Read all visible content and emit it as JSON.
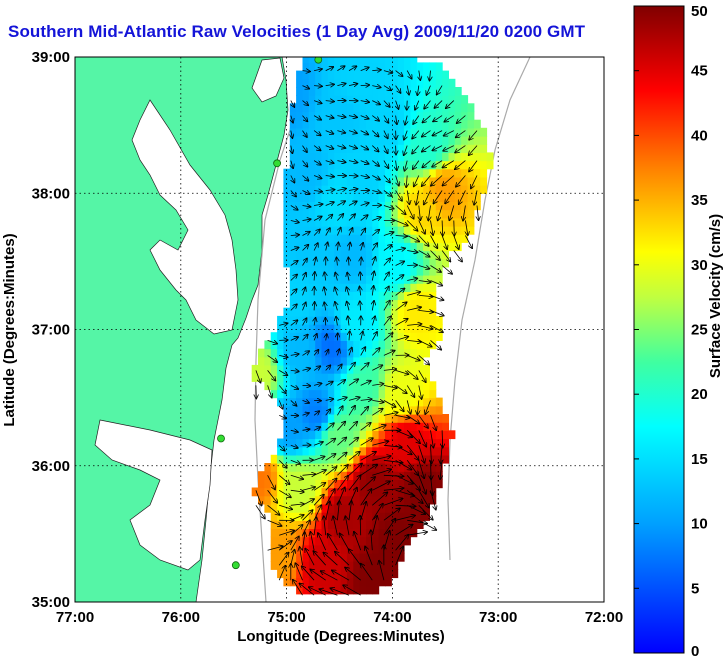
{
  "chart_data": {
    "type": "heatmap",
    "title": "Southern Mid-Atlantic Raw Velocities (1 Day Avg) 2009/11/20 0200 GMT",
    "xlabel": "Longitude (Degrees:Minutes)",
    "ylabel": "Latitude (Degrees:Minutes)",
    "xlim": [
      -77,
      -72
    ],
    "ylim": [
      35,
      39
    ],
    "x_ticks": [
      {
        "value": -77,
        "label": "77:00"
      },
      {
        "value": -76,
        "label": "76:00"
      },
      {
        "value": -75,
        "label": "75:00"
      },
      {
        "value": -74,
        "label": "74:00"
      },
      {
        "value": -73,
        "label": "73:00"
      },
      {
        "value": -72,
        "label": "72:00"
      }
    ],
    "y_ticks": [
      {
        "value": 35,
        "label": "35:00"
      },
      {
        "value": 36,
        "label": "36:00"
      },
      {
        "value": 37,
        "label": "37:00"
      },
      {
        "value": 38,
        "label": "38:00"
      },
      {
        "value": 39,
        "label": "39:00"
      }
    ],
    "grid": true,
    "colorbar": {
      "label": "Surface Velocity (cm/s)",
      "range": [
        0,
        50
      ],
      "ticks": [
        {
          "value": 0,
          "label": "0"
        },
        {
          "value": 5,
          "label": "5"
        },
        {
          "value": 10,
          "label": "10"
        },
        {
          "value": 15,
          "label": "15"
        },
        {
          "value": 20,
          "label": "20"
        },
        {
          "value": 25,
          "label": "25"
        },
        {
          "value": 30,
          "label": "30"
        },
        {
          "value": 35,
          "label": "35"
        },
        {
          "value": 40,
          "label": "40"
        },
        {
          "value": 45,
          "label": "45"
        },
        {
          "value": 50,
          "label": "50"
        }
      ],
      "colormap": "jet"
    },
    "land_color": "#55f5a6",
    "arrow_color": "#000000",
    "stations": [
      {
        "lon": -74.7,
        "lat": 38.98
      },
      {
        "lon": -75.09,
        "lat": 38.22
      },
      {
        "lon": -75.62,
        "lat": 36.2
      },
      {
        "lon": -75.48,
        "lat": 35.27
      }
    ],
    "velocity_field": [
      {
        "lon": -75.03,
        "lat": 38.7,
        "speed": 10
      },
      {
        "lon": -74.5,
        "lat": 38.55,
        "speed": 13
      },
      {
        "lon": -74.1,
        "lat": 38.45,
        "speed": 14
      },
      {
        "lon": -73.7,
        "lat": 38.3,
        "speed": 20
      },
      {
        "lon": -73.55,
        "lat": 38.0,
        "speed": 36
      },
      {
        "lon": -73.75,
        "lat": 37.85,
        "speed": 33
      },
      {
        "lon": -74.3,
        "lat": 38.05,
        "speed": 14
      },
      {
        "lon": -74.85,
        "lat": 38.1,
        "speed": 12
      },
      {
        "lon": -74.8,
        "lat": 37.55,
        "speed": 13
      },
      {
        "lon": -74.4,
        "lat": 37.5,
        "speed": 12
      },
      {
        "lon": -74.0,
        "lat": 37.45,
        "speed": 17
      },
      {
        "lon": -73.8,
        "lat": 37.1,
        "speed": 32
      },
      {
        "lon": -74.4,
        "lat": 37.0,
        "speed": 16
      },
      {
        "lon": -74.6,
        "lat": 36.85,
        "speed": 7
      },
      {
        "lon": -74.9,
        "lat": 36.8,
        "speed": 12
      },
      {
        "lon": -75.3,
        "lat": 36.65,
        "speed": 28
      },
      {
        "lon": -74.3,
        "lat": 36.55,
        "speed": 22
      },
      {
        "lon": -73.95,
        "lat": 36.5,
        "speed": 30
      },
      {
        "lon": -74.75,
        "lat": 36.35,
        "speed": 8
      },
      {
        "lon": -75.0,
        "lat": 36.25,
        "speed": 10
      },
      {
        "lon": -74.55,
        "lat": 36.2,
        "speed": 24
      },
      {
        "lon": -73.9,
        "lat": 36.15,
        "speed": 45
      },
      {
        "lon": -74.2,
        "lat": 35.85,
        "speed": 49
      },
      {
        "lon": -73.75,
        "lat": 35.8,
        "speed": 50
      },
      {
        "lon": -75.3,
        "lat": 35.9,
        "speed": 38
      },
      {
        "lon": -74.9,
        "lat": 35.8,
        "speed": 28
      },
      {
        "lon": -74.5,
        "lat": 35.6,
        "speed": 48
      },
      {
        "lon": -74.0,
        "lat": 35.45,
        "speed": 50
      },
      {
        "lon": -74.7,
        "lat": 35.25,
        "speed": 46
      },
      {
        "lon": -74.2,
        "lat": 35.15,
        "speed": 50
      },
      {
        "lon": -75.1,
        "lat": 35.3,
        "speed": 36
      },
      {
        "lon": -74.55,
        "lat": 37.9,
        "speed": 15
      },
      {
        "lon": -74.35,
        "lat": 38.75,
        "speed": 14
      },
      {
        "lon": -74.95,
        "lat": 37.2,
        "speed": 14
      }
    ]
  }
}
